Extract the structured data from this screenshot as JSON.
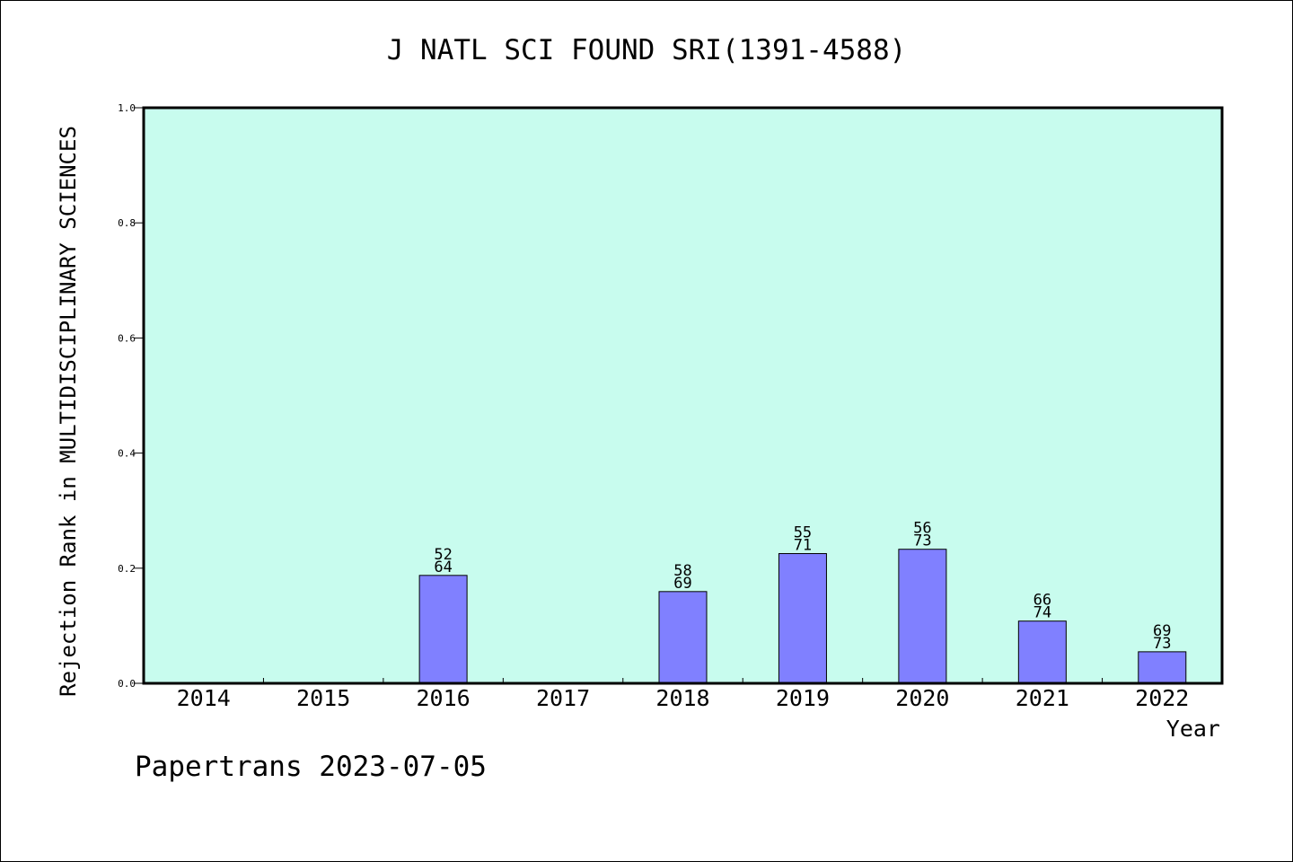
{
  "chart_data": {
    "type": "bar",
    "title": "J NATL SCI FOUND SRI(1391-4588)",
    "xlabel": "Year",
    "ylabel": "Rejection Rank in MULTIDISCIPLINARY SCIENCES",
    "ylim": [
      0,
      1.0
    ],
    "yticks": [
      "0.0",
      "0.2",
      "0.4",
      "0.6",
      "0.8",
      "1.0"
    ],
    "categories": [
      "2014",
      "2015",
      "2016",
      "2017",
      "2018",
      "2019",
      "2020",
      "2021",
      "2022"
    ],
    "values": [
      null,
      null,
      0.1875,
      null,
      0.1594,
      0.2254,
      0.2329,
      0.1081,
      0.0548
    ],
    "labels_top": [
      null,
      null,
      "52",
      null,
      "58",
      "55",
      "56",
      "66",
      "69"
    ],
    "labels_bottom": [
      null,
      null,
      "64",
      null,
      "69",
      "71",
      "73",
      "74",
      "73"
    ],
    "grid": false,
    "colors": {
      "plot_bg": "#c8fcee",
      "bar": "#8080ff",
      "axis": "#000000"
    }
  },
  "footer": "Papertrans 2023-07-05"
}
